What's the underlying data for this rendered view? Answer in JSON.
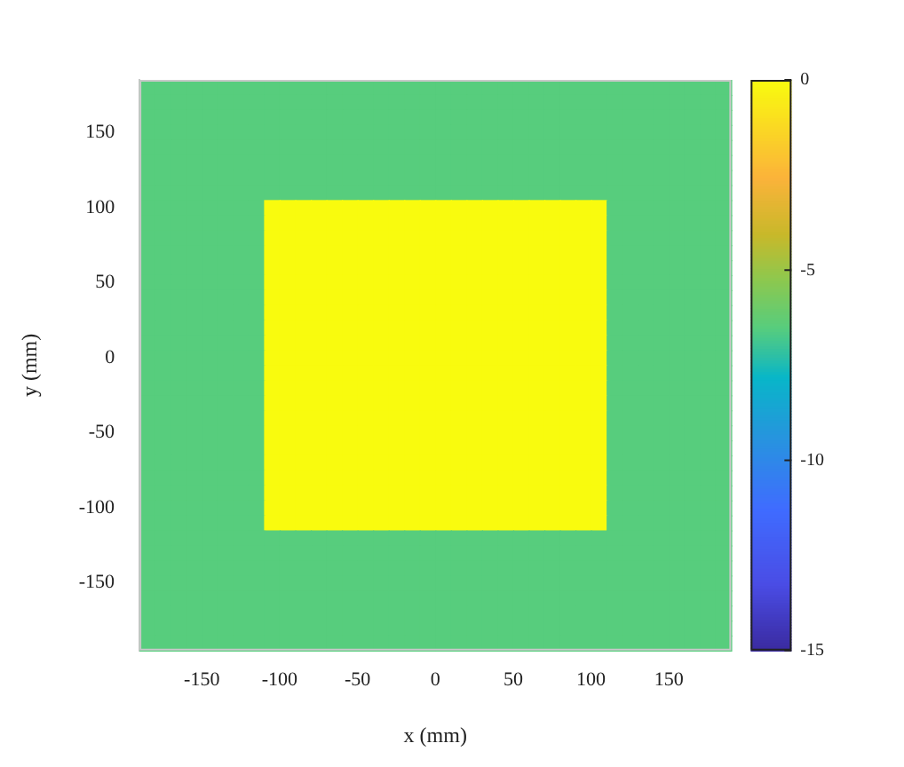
{
  "chart_data": {
    "type": "heatmap",
    "xlabel": "x (mm)",
    "ylabel": "y (mm)",
    "x": [
      -185,
      -175,
      -165,
      -155,
      -145,
      -135,
      -125,
      -115,
      -105,
      -95,
      -85,
      -75,
      -65,
      -55,
      -45,
      -35,
      -25,
      -15,
      -5,
      5,
      15,
      25,
      35,
      45,
      55,
      65,
      75,
      85,
      95,
      105,
      115,
      125,
      135,
      145,
      155,
      165,
      175,
      185
    ],
    "y": [
      180,
      170,
      160,
      150,
      140,
      130,
      120,
      110,
      100,
      90,
      80,
      70,
      60,
      50,
      40,
      30,
      20,
      10,
      0,
      -10,
      -20,
      -30,
      -40,
      -50,
      -60,
      -70,
      -80,
      -90,
      -100,
      -110,
      -120,
      -130,
      -140,
      -150,
      -160,
      -170,
      -180,
      -190
    ],
    "xlim": [
      -190,
      190
    ],
    "xticks": [
      -150,
      -100,
      -50,
      0,
      50,
      100,
      150
    ],
    "ylim": [
      -195,
      185
    ],
    "yticks": [
      -150,
      -100,
      -50,
      0,
      50,
      100,
      150
    ],
    "clim": [
      -15,
      0
    ],
    "cticks": [
      -15,
      -10,
      -5,
      0
    ],
    "cells": [
      [
        -6.5,
        -6.5,
        -6.5,
        -6.5,
        -6.5,
        -6.5,
        -6.5,
        -6.5,
        -6.5,
        -6.5,
        -6.5,
        -6.5,
        -6.5,
        -6.5,
        -6.5,
        -6.5,
        -6.5,
        -6.5,
        -6.5,
        -6.5,
        -6.5,
        -6.5,
        -6.5,
        -6.5,
        -6.5,
        -6.5,
        -6.5,
        -6.5,
        -6.5,
        -6.5,
        -6.5,
        -6.5,
        -6.5,
        -6.5,
        -6.5,
        -6.5,
        -6.5,
        -6.5
      ],
      [
        -6.5,
        -6.5,
        -6.5,
        -6.5,
        -6.5,
        -6.5,
        -6.5,
        -6.5,
        -6.5,
        -6.5,
        -6.5,
        -6.5,
        -6.5,
        -6.5,
        -6.5,
        -6.5,
        -6.5,
        -6.5,
        -6.5,
        -6.5,
        -6.5,
        -6.5,
        -6.5,
        -6.5,
        -6.5,
        -6.5,
        -6.5,
        -6.5,
        -6.5,
        -6.5,
        -6.5,
        -6.5,
        -6.5,
        -6.5,
        -6.5,
        -6.5,
        -6.5,
        -6.5
      ],
      [
        -6.5,
        -6.5,
        -6.5,
        -6.5,
        -6.5,
        -6.5,
        -6.5,
        -6.5,
        -6.5,
        -6.5,
        -6.5,
        -6.5,
        -6.5,
        -6.5,
        -6.5,
        -6.5,
        -6.5,
        -6.5,
        -6.5,
        -6.5,
        -6.5,
        -6.5,
        -6.5,
        -6.5,
        -6.5,
        -6.5,
        -6.5,
        -6.5,
        -6.5,
        -6.5,
        -6.5,
        -6.5,
        -6.5,
        -6.5,
        -6.5,
        -6.5,
        -6.5,
        -6.5
      ],
      [
        -6.5,
        -6.5,
        -6.5,
        -6.5,
        -6.5,
        -6.5,
        -6.5,
        -6.5,
        -6.5,
        -6.5,
        -6.5,
        -6.5,
        -6.5,
        -6.5,
        -6.5,
        -6.5,
        -6.5,
        -6.5,
        -6.5,
        -6.5,
        -6.5,
        -6.5,
        -6.5,
        -6.5,
        -6.5,
        -6.5,
        -6.5,
        -6.5,
        -6.5,
        -6.5,
        -6.5,
        -6.5,
        -6.5,
        -6.5,
        -6.5,
        -6.5,
        -6.5,
        -6.5
      ],
      [
        -6.5,
        -6.5,
        -6.5,
        -6.5,
        -6.5,
        -6.5,
        -6.5,
        -6.5,
        -6.5,
        -6.5,
        -6.5,
        -6.5,
        -6.5,
        -6.5,
        -6.5,
        -6.5,
        -6.5,
        -6.5,
        -6.5,
        -6.5,
        -6.5,
        -6.5,
        -6.5,
        -6.5,
        -6.5,
        -6.5,
        -6.5,
        -6.5,
        -6.5,
        -6.5,
        -6.5,
        -6.5,
        -6.5,
        -6.5,
        -6.5,
        -6.5,
        -6.5,
        -6.5
      ],
      [
        -6.5,
        -6.5,
        -6.5,
        -6.5,
        -6.5,
        -6.5,
        -6.5,
        -6.5,
        -6.5,
        -6.5,
        -6.5,
        -6.5,
        -6.5,
        -6.5,
        -6.5,
        -6.5,
        -6.5,
        -6.5,
        -6.5,
        -6.5,
        -6.5,
        -6.5,
        -6.5,
        -6.5,
        -6.5,
        -6.5,
        -6.5,
        -6.5,
        -6.5,
        -6.5,
        -6.5,
        -6.5,
        -6.5,
        -6.5,
        -6.5,
        -6.5,
        -6.5,
        -6.5
      ],
      [
        -6.5,
        -6.5,
        -6.5,
        -6.5,
        -6.5,
        -6.5,
        -6.5,
        -6.5,
        -6.5,
        -6.5,
        -6.5,
        -6.5,
        -6.5,
        -6.5,
        -6.5,
        -6.5,
        -6.5,
        -6.5,
        -6.5,
        -6.5,
        -6.5,
        -6.5,
        -6.5,
        -6.5,
        -6.5,
        -6.5,
        -6.5,
        -6.5,
        -6.5,
        -6.5,
        -6.5,
        -6.5,
        -6.5,
        -6.5,
        -6.5,
        -6.5,
        -6.5,
        -6.5
      ],
      [
        -6.5,
        -6.5,
        -6.5,
        -6.5,
        -6.5,
        -6.5,
        -6.5,
        -6.5,
        -6.5,
        -6.5,
        -6.5,
        -6.5,
        -6.5,
        -6.5,
        -6.5,
        -6.5,
        -6.5,
        -6.5,
        -6.5,
        -6.5,
        -6.5,
        -6.5,
        -6.5,
        -6.5,
        -6.5,
        -6.5,
        -6.5,
        -6.5,
        -6.5,
        -6.5,
        -6.5,
        -6.5,
        -6.5,
        -6.5,
        -6.5,
        -6.5,
        -6.5,
        -6.5
      ],
      [
        -6.5,
        -6.5,
        -6.5,
        -6.5,
        -6.5,
        -6.5,
        -6.5,
        -6.5,
        0,
        0,
        0,
        0,
        0,
        0,
        0,
        0,
        0,
        0,
        0,
        0,
        0,
        0,
        0,
        0,
        0,
        0,
        0,
        0,
        0,
        0,
        -6.5,
        -6.5,
        -6.5,
        -6.5,
        -6.5,
        -6.5,
        -6.5,
        -6.5
      ],
      [
        -6.5,
        -6.5,
        -6.5,
        -6.5,
        -6.5,
        -6.5,
        -6.5,
        -6.5,
        0,
        0,
        0,
        0,
        0,
        0,
        0,
        0,
        0,
        0,
        0,
        0,
        0,
        0,
        0,
        0,
        0,
        0,
        0,
        0,
        0,
        0,
        -6.5,
        -6.5,
        -6.5,
        -6.5,
        -6.5,
        -6.5,
        -6.5,
        -6.5
      ],
      [
        -6.5,
        -6.5,
        -6.5,
        -6.5,
        -6.5,
        -6.5,
        -6.5,
        -6.5,
        0,
        0,
        0,
        0,
        0,
        0,
        0,
        0,
        0,
        0,
        0,
        0,
        0,
        0,
        0,
        0,
        0,
        0,
        0,
        0,
        0,
        0,
        -6.5,
        -6.5,
        -6.5,
        -6.5,
        -6.5,
        -6.5,
        -6.5,
        -6.5
      ],
      [
        -6.5,
        -6.5,
        -6.5,
        -6.5,
        -6.5,
        -6.5,
        -6.5,
        -6.5,
        0,
        0,
        0,
        0,
        0,
        0,
        0,
        0,
        0,
        0,
        0,
        0,
        0,
        0,
        0,
        0,
        0,
        0,
        0,
        0,
        0,
        0,
        -6.5,
        -6.5,
        -6.5,
        -6.5,
        -6.5,
        -6.5,
        -6.5,
        -6.5
      ],
      [
        -6.5,
        -6.5,
        -6.5,
        -6.5,
        -6.5,
        -6.5,
        -6.5,
        -6.5,
        0,
        0,
        0,
        0,
        0,
        0,
        0,
        0,
        0,
        0,
        0,
        0,
        0,
        0,
        0,
        0,
        0,
        0,
        0,
        0,
        0,
        0,
        -6.5,
        -6.5,
        -6.5,
        -6.5,
        -6.5,
        -6.5,
        -6.5,
        -6.5
      ],
      [
        -6.5,
        -6.5,
        -6.5,
        -6.5,
        -6.5,
        -6.5,
        -6.5,
        -6.5,
        0,
        0,
        0,
        0,
        0,
        0,
        0,
        0,
        0,
        0,
        0,
        0,
        0,
        0,
        0,
        0,
        0,
        0,
        0,
        0,
        0,
        0,
        -6.5,
        -6.5,
        -6.5,
        -6.5,
        -6.5,
        -6.5,
        -6.5,
        -6.5
      ],
      [
        -6.5,
        -6.5,
        -6.5,
        -6.5,
        -6.5,
        -6.5,
        -6.5,
        -6.5,
        0,
        0,
        0,
        0,
        0,
        0,
        0,
        0,
        0,
        0,
        0,
        0,
        0,
        0,
        0,
        0,
        0,
        0,
        0,
        0,
        0,
        0,
        -6.5,
        -6.5,
        -6.5,
        -6.5,
        -6.5,
        -6.5,
        -6.5,
        -6.5
      ],
      [
        -6.5,
        -6.5,
        -6.5,
        -6.5,
        -6.5,
        -6.5,
        -6.5,
        -6.5,
        0,
        0,
        0,
        0,
        0,
        0,
        0,
        0,
        0,
        0,
        0,
        0,
        0,
        0,
        0,
        0,
        0,
        0,
        0,
        0,
        0,
        0,
        -6.5,
        -6.5,
        -6.5,
        -6.5,
        -6.5,
        -6.5,
        -6.5,
        -6.5
      ],
      [
        -6.5,
        -6.5,
        -6.5,
        -6.5,
        -6.5,
        -6.5,
        -6.5,
        -6.5,
        0,
        0,
        0,
        0,
        0,
        0,
        0,
        0,
        0,
        0,
        0,
        0,
        0,
        0,
        0,
        0,
        0,
        0,
        0,
        0,
        0,
        0,
        -6.5,
        -6.5,
        -6.5,
        -6.5,
        -6.5,
        -6.5,
        -6.5,
        -6.5
      ],
      [
        -6.5,
        -6.5,
        -6.5,
        -6.5,
        -6.5,
        -6.5,
        -6.5,
        -6.5,
        0,
        0,
        0,
        0,
        0,
        0,
        0,
        0,
        0,
        0,
        0,
        0,
        0,
        0,
        0,
        0,
        0,
        0,
        0,
        0,
        0,
        0,
        -6.5,
        -6.5,
        -6.5,
        -6.5,
        -6.5,
        -6.5,
        -6.5,
        -6.5
      ],
      [
        -6.5,
        -6.5,
        -6.5,
        -6.5,
        -6.5,
        -6.5,
        -6.5,
        -6.5,
        0,
        0,
        0,
        0,
        0,
        0,
        0,
        0,
        0,
        0,
        0,
        0,
        0,
        0,
        0,
        0,
        0,
        0,
        0,
        0,
        0,
        0,
        -6.5,
        -6.5,
        -6.5,
        -6.5,
        -6.5,
        -6.5,
        -6.5,
        -6.5
      ],
      [
        -6.5,
        -6.5,
        -6.5,
        -6.5,
        -6.5,
        -6.5,
        -6.5,
        -6.5,
        0,
        0,
        0,
        0,
        0,
        0,
        0,
        0,
        0,
        0,
        0,
        0,
        0,
        0,
        0,
        0,
        0,
        0,
        0,
        0,
        0,
        0,
        -6.5,
        -6.5,
        -6.5,
        -6.5,
        -6.5,
        -6.5,
        -6.5,
        -6.5
      ],
      [
        -6.5,
        -6.5,
        -6.5,
        -6.5,
        -6.5,
        -6.5,
        -6.5,
        -6.5,
        0,
        0,
        0,
        0,
        0,
        0,
        0,
        0,
        0,
        0,
        0,
        0,
        0,
        0,
        0,
        0,
        0,
        0,
        0,
        0,
        0,
        0,
        -6.5,
        -6.5,
        -6.5,
        -6.5,
        -6.5,
        -6.5,
        -6.5,
        -6.5
      ],
      [
        -6.5,
        -6.5,
        -6.5,
        -6.5,
        -6.5,
        -6.5,
        -6.5,
        -6.5,
        0,
        0,
        0,
        0,
        0,
        0,
        0,
        0,
        0,
        0,
        0,
        0,
        0,
        0,
        0,
        0,
        0,
        0,
        0,
        0,
        0,
        0,
        -6.5,
        -6.5,
        -6.5,
        -6.5,
        -6.5,
        -6.5,
        -6.5,
        -6.5
      ],
      [
        -6.5,
        -6.5,
        -6.5,
        -6.5,
        -6.5,
        -6.5,
        -6.5,
        -6.5,
        0,
        0,
        0,
        0,
        0,
        0,
        0,
        0,
        0,
        0,
        0,
        0,
        0,
        0,
        0,
        0,
        0,
        0,
        0,
        0,
        0,
        0,
        -6.5,
        -6.5,
        -6.5,
        -6.5,
        -6.5,
        -6.5,
        -6.5,
        -6.5
      ],
      [
        -6.5,
        -6.5,
        -6.5,
        -6.5,
        -6.5,
        -6.5,
        -6.5,
        -6.5,
        0,
        0,
        0,
        0,
        0,
        0,
        0,
        0,
        0,
        0,
        0,
        0,
        0,
        0,
        0,
        0,
        0,
        0,
        0,
        0,
        0,
        0,
        -6.5,
        -6.5,
        -6.5,
        -6.5,
        -6.5,
        -6.5,
        -6.5,
        -6.5
      ],
      [
        -6.5,
        -6.5,
        -6.5,
        -6.5,
        -6.5,
        -6.5,
        -6.5,
        -6.5,
        0,
        0,
        0,
        0,
        0,
        0,
        0,
        0,
        0,
        0,
        0,
        0,
        0,
        0,
        0,
        0,
        0,
        0,
        0,
        0,
        0,
        0,
        -6.5,
        -6.5,
        -6.5,
        -6.5,
        -6.5,
        -6.5,
        -6.5,
        -6.5
      ],
      [
        -6.5,
        -6.5,
        -6.5,
        -6.5,
        -6.5,
        -6.5,
        -6.5,
        -6.5,
        0,
        0,
        0,
        0,
        0,
        0,
        0,
        0,
        0,
        0,
        0,
        0,
        0,
        0,
        0,
        0,
        0,
        0,
        0,
        0,
        0,
        0,
        -6.5,
        -6.5,
        -6.5,
        -6.5,
        -6.5,
        -6.5,
        -6.5,
        -6.5
      ],
      [
        -6.5,
        -6.5,
        -6.5,
        -6.5,
        -6.5,
        -6.5,
        -6.5,
        -6.5,
        0,
        0,
        0,
        0,
        0,
        0,
        0,
        0,
        0,
        0,
        0,
        0,
        0,
        0,
        0,
        0,
        0,
        0,
        0,
        0,
        0,
        0,
        -6.5,
        -6.5,
        -6.5,
        -6.5,
        -6.5,
        -6.5,
        -6.5,
        -6.5
      ],
      [
        -6.5,
        -6.5,
        -6.5,
        -6.5,
        -6.5,
        -6.5,
        -6.5,
        -6.5,
        0,
        0,
        0,
        0,
        0,
        0,
        0,
        0,
        0,
        0,
        0,
        0,
        0,
        0,
        0,
        0,
        0,
        0,
        0,
        0,
        0,
        0,
        -6.5,
        -6.5,
        -6.5,
        -6.5,
        -6.5,
        -6.5,
        -6.5,
        -6.5
      ],
      [
        -6.5,
        -6.5,
        -6.5,
        -6.5,
        -6.5,
        -6.5,
        -6.5,
        -6.5,
        0,
        0,
        0,
        0,
        0,
        0,
        0,
        0,
        0,
        0,
        0,
        0,
        0,
        0,
        0,
        0,
        0,
        0,
        0,
        0,
        0,
        0,
        -6.5,
        -6.5,
        -6.5,
        -6.5,
        -6.5,
        -6.5,
        -6.5,
        -6.5
      ],
      [
        -6.5,
        -6.5,
        -6.5,
        -6.5,
        -6.5,
        -6.5,
        -6.5,
        -6.5,
        0,
        0,
        0,
        0,
        0,
        0,
        0,
        0,
        0,
        0,
        0,
        0,
        0,
        0,
        0,
        0,
        0,
        0,
        0,
        0,
        0,
        0,
        -6.5,
        -6.5,
        -6.5,
        -6.5,
        -6.5,
        -6.5,
        -6.5,
        -6.5
      ],
      [
        -6.5,
        -6.5,
        -6.5,
        -6.5,
        -6.5,
        -6.5,
        -6.5,
        -6.5,
        -6.5,
        -6.5,
        -6.5,
        -6.5,
        -6.5,
        -6.5,
        -6.5,
        -6.5,
        -6.5,
        -6.5,
        -6.5,
        -6.5,
        -6.5,
        -6.5,
        -6.5,
        -6.5,
        -6.5,
        -6.5,
        -6.5,
        -6.5,
        -6.5,
        -6.5,
        -6.5,
        -6.5,
        -6.5,
        -6.5,
        -6.5,
        -6.5,
        -6.5,
        -6.5
      ],
      [
        -6.5,
        -6.5,
        -6.5,
        -6.5,
        -6.5,
        -6.5,
        -6.5,
        -6.5,
        -6.5,
        -6.5,
        -6.5,
        -6.5,
        -6.5,
        -6.5,
        -6.5,
        -6.5,
        -6.5,
        -6.5,
        -6.5,
        -6.5,
        -6.5,
        -6.5,
        -6.5,
        -6.5,
        -6.5,
        -6.5,
        -6.5,
        -6.5,
        -6.5,
        -6.5,
        -6.5,
        -6.5,
        -6.5,
        -6.5,
        -6.5,
        -6.5,
        -6.5,
        -6.5
      ],
      [
        -6.5,
        -6.5,
        -6.5,
        -6.5,
        -6.5,
        -6.5,
        -6.5,
        -6.5,
        -6.5,
        -6.5,
        -6.5,
        -6.5,
        -6.5,
        -6.5,
        -6.5,
        -6.5,
        -6.5,
        -6.5,
        -6.5,
        -6.5,
        -6.5,
        -6.5,
        -6.5,
        -6.5,
        -6.5,
        -6.5,
        -6.5,
        -6.5,
        -6.5,
        -6.5,
        -6.5,
        -6.5,
        -6.5,
        -6.5,
        -6.5,
        -6.5,
        -6.5,
        -6.5
      ],
      [
        -6.5,
        -6.5,
        -6.5,
        -6.5,
        -6.5,
        -6.5,
        -6.5,
        -6.5,
        -6.5,
        -6.5,
        -6.5,
        -6.5,
        -6.5,
        -6.5,
        -6.5,
        -6.5,
        -6.5,
        -6.5,
        -6.5,
        -6.5,
        -6.5,
        -6.5,
        -6.5,
        -6.5,
        -6.5,
        -6.5,
        -6.5,
        -6.5,
        -6.5,
        -6.5,
        -6.5,
        -6.5,
        -6.5,
        -6.5,
        -6.5,
        -6.5,
        -6.5,
        -6.5
      ],
      [
        -6.5,
        -6.5,
        -6.5,
        -6.5,
        -6.5,
        -6.5,
        -6.5,
        -6.5,
        -6.5,
        -6.5,
        -6.5,
        -6.5,
        -6.5,
        -6.5,
        -6.5,
        -6.5,
        -6.5,
        -6.5,
        -6.5,
        -6.5,
        -6.5,
        -6.5,
        -6.5,
        -6.5,
        -6.5,
        -6.5,
        -6.5,
        -6.5,
        -6.5,
        -6.5,
        -6.5,
        -6.5,
        -6.5,
        -6.5,
        -6.5,
        -6.5,
        -6.5,
        -6.5
      ],
      [
        -6.5,
        -6.5,
        -6.5,
        -6.5,
        -6.5,
        -6.5,
        -6.5,
        -6.5,
        -6.5,
        -6.5,
        -6.5,
        -6.5,
        -6.5,
        -6.5,
        -6.5,
        -6.5,
        -6.5,
        -6.5,
        -6.5,
        -6.5,
        -6.5,
        -6.5,
        -6.5,
        -6.5,
        -6.5,
        -6.5,
        -6.5,
        -6.5,
        -6.5,
        -6.5,
        -6.5,
        -6.5,
        -6.5,
        -6.5,
        -6.5,
        -6.5,
        -6.5,
        -6.5
      ],
      [
        -6.5,
        -6.5,
        -6.5,
        -6.5,
        -6.5,
        -6.5,
        -6.5,
        -6.5,
        -6.5,
        -6.5,
        -6.5,
        -6.5,
        -6.5,
        -6.5,
        -6.5,
        -6.5,
        -6.5,
        -6.5,
        -6.5,
        -6.5,
        -6.5,
        -6.5,
        -6.5,
        -6.5,
        -6.5,
        -6.5,
        -6.5,
        -6.5,
        -6.5,
        -6.5,
        -6.5,
        -6.5,
        -6.5,
        -6.5,
        -6.5,
        -6.5,
        -6.5,
        -6.5
      ],
      [
        -6.5,
        -6.5,
        -6.5,
        -6.5,
        -6.5,
        -6.5,
        -6.5,
        -6.5,
        -6.5,
        -6.5,
        -6.5,
        -6.5,
        -6.5,
        -6.5,
        -6.5,
        -6.5,
        -6.5,
        -6.5,
        -6.5,
        -6.5,
        -6.5,
        -6.5,
        -6.5,
        -6.5,
        -6.5,
        -6.5,
        -6.5,
        -6.5,
        -6.5,
        -6.5,
        -6.5,
        -6.5,
        -6.5,
        -6.5,
        -6.5,
        -6.5,
        -6.5,
        -6.5
      ]
    ]
  }
}
